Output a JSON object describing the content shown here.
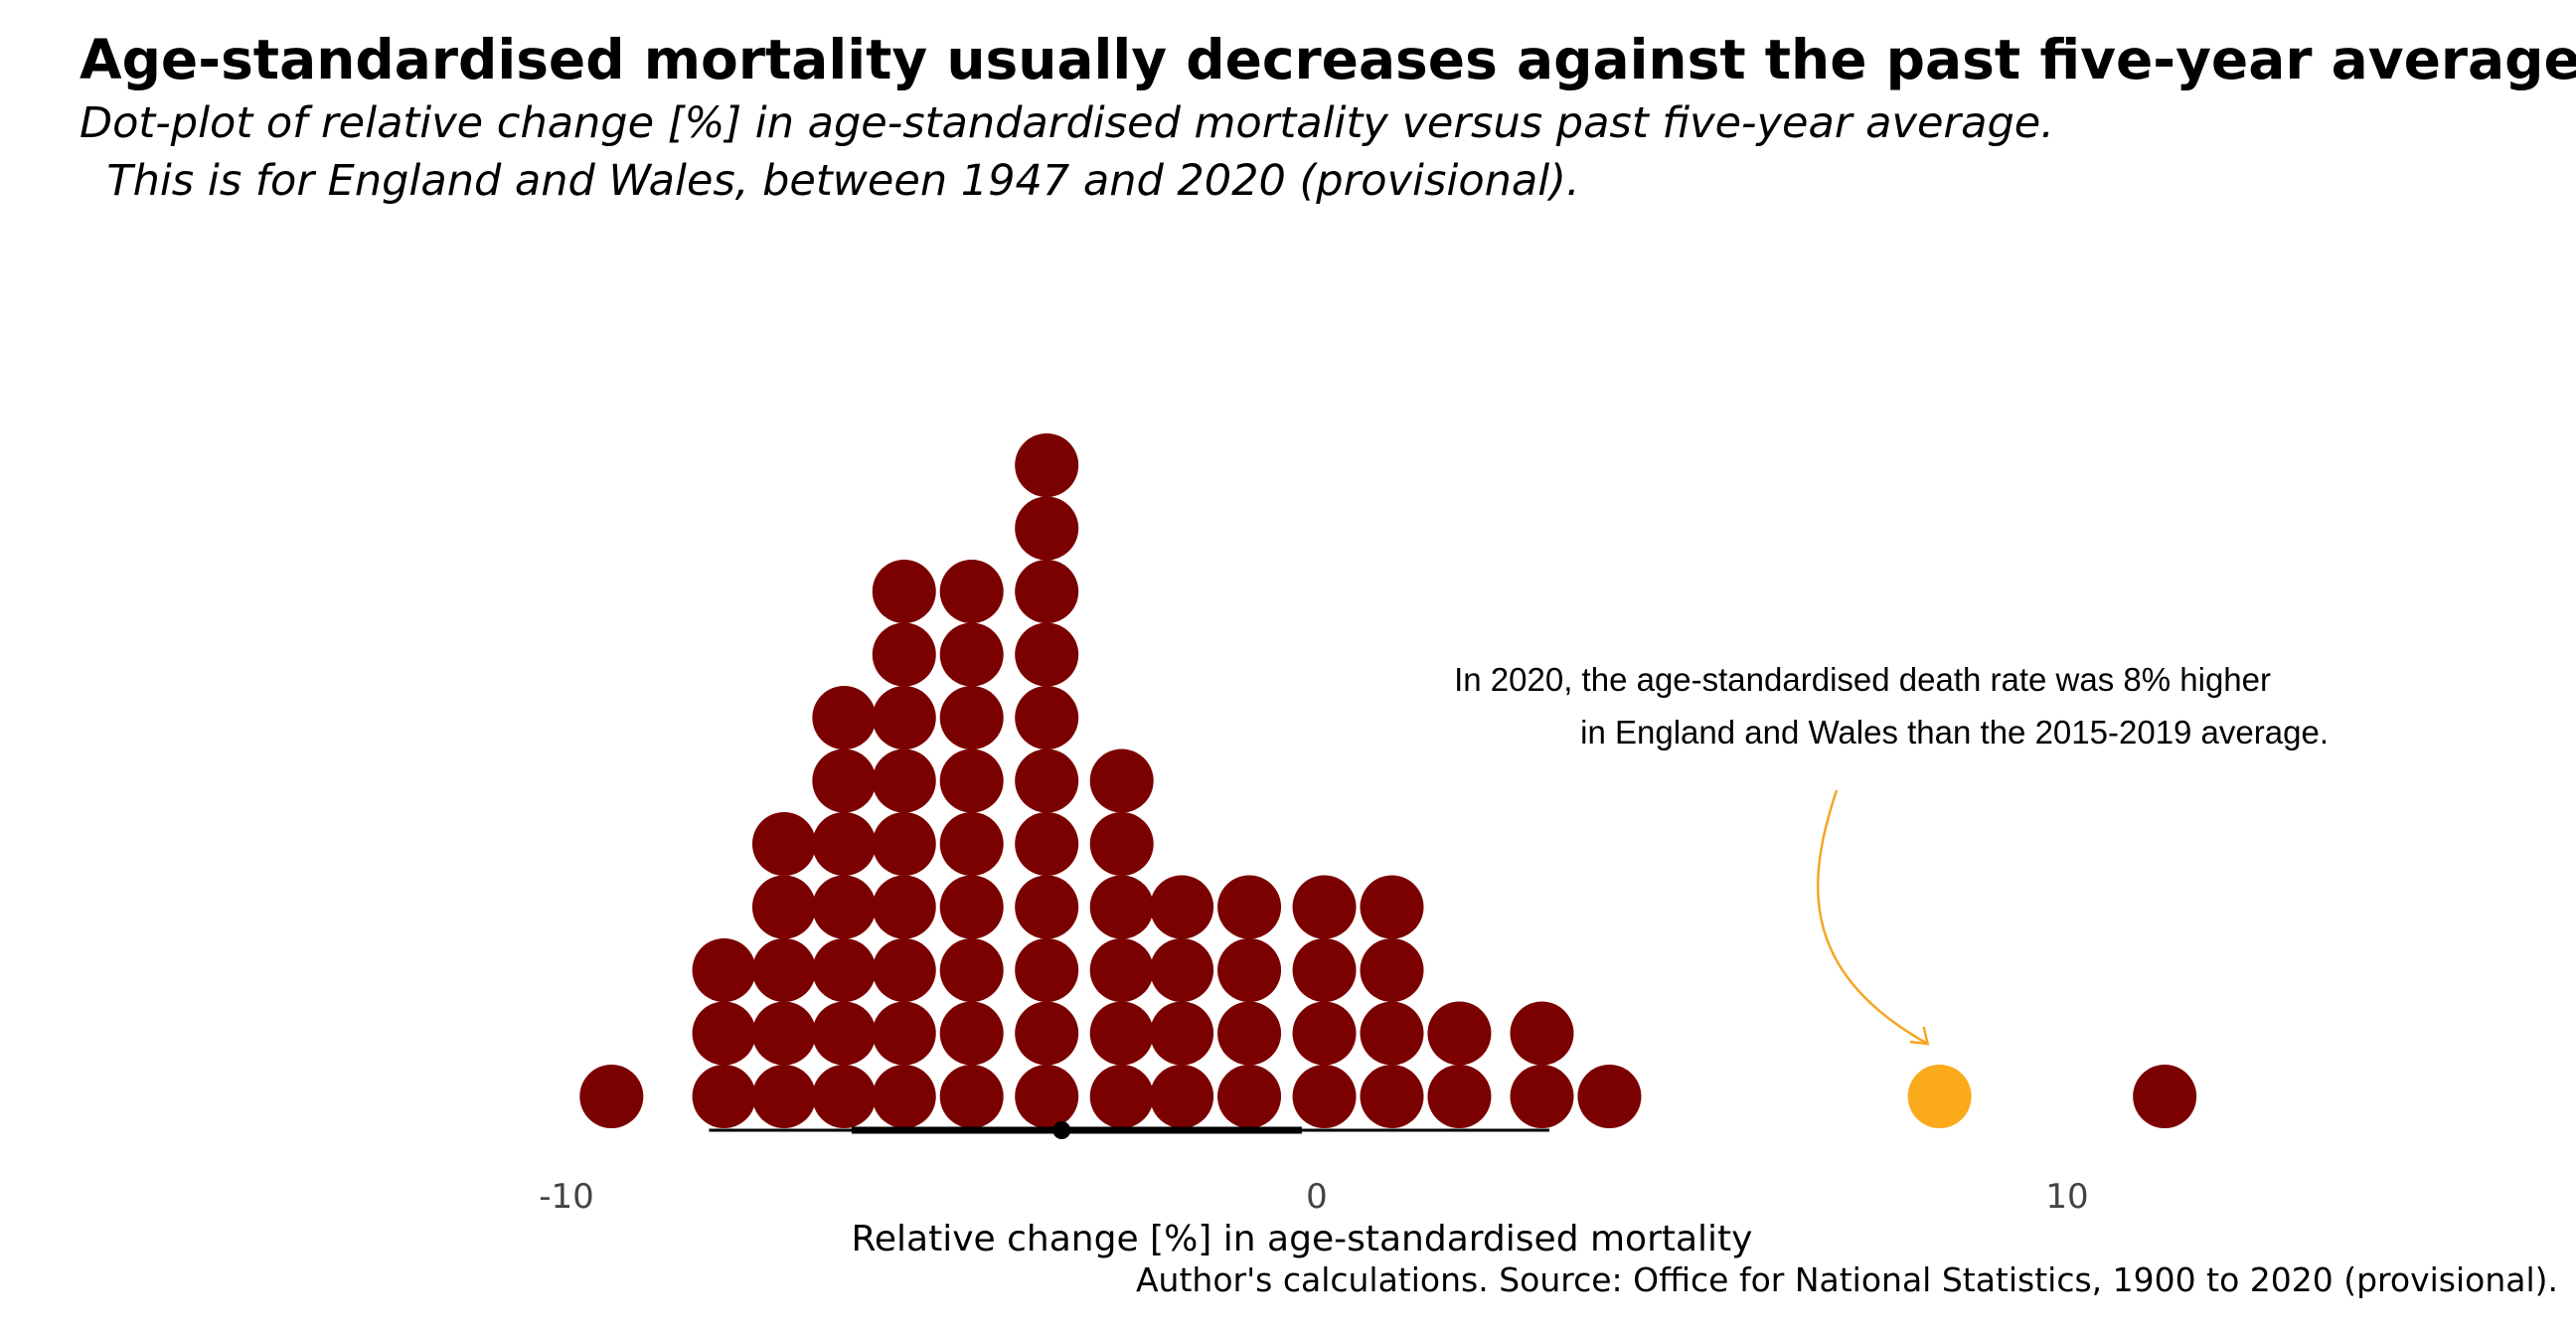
{
  "title": "Age-standardised mortality usually decreases against the past five-year average.",
  "subtitle": "Dot-plot of relative change [%] in age-standardised mortality versus past five-year average.\n  This is for England and Wales, between 1947 and 2020 (provisional).",
  "caption": "Author's calculations. Source: Office for National Statistics, 1900 to 2020 (provisional).",
  "colors": {
    "dot": "#7b0000",
    "highlight": "#fbaa1b",
    "interval": "#000000",
    "arrow": "#f5a623"
  },
  "chart_data": {
    "type": "scatter",
    "subtype": "dotplot",
    "xlabel": "Relative change [%] in age-standardised mortality",
    "ylabel": "",
    "xlim": [
      -11,
      14.5
    ],
    "xticks": [
      {
        "value": -10,
        "label": "-10"
      },
      {
        "value": 0,
        "label": "0"
      },
      {
        "value": 10,
        "label": "10"
      }
    ],
    "grid": false,
    "bins": [
      {
        "x": -9.4,
        "count": 1
      },
      {
        "x": -7.9,
        "count": 3
      },
      {
        "x": -7.1,
        "count": 5
      },
      {
        "x": -6.3,
        "count": 7
      },
      {
        "x": -5.5,
        "count": 9
      },
      {
        "x": -4.6,
        "count": 9
      },
      {
        "x": -3.6,
        "count": 11
      },
      {
        "x": -2.6,
        "count": 6
      },
      {
        "x": -1.8,
        "count": 4
      },
      {
        "x": -0.9,
        "count": 4
      },
      {
        "x": 0.1,
        "count": 4
      },
      {
        "x": 1.0,
        "count": 4
      },
      {
        "x": 1.9,
        "count": 2
      },
      {
        "x": 3.0,
        "count": 2
      },
      {
        "x": 3.9,
        "count": 1
      },
      {
        "x": 8.3,
        "count": 1,
        "highlight": true,
        "label": "2020"
      },
      {
        "x": 11.3,
        "count": 1
      }
    ],
    "interval": {
      "median": -3.4,
      "inner": [
        -6.2,
        -0.2
      ],
      "outer": [
        -8.1,
        3.1
      ]
    },
    "annotation": {
      "text_lines": [
        "In 2020, the age-standardised death rate was 8% higher",
        "in England and Wales than the 2015-2019 average."
      ],
      "target_x": 8.3
    }
  }
}
